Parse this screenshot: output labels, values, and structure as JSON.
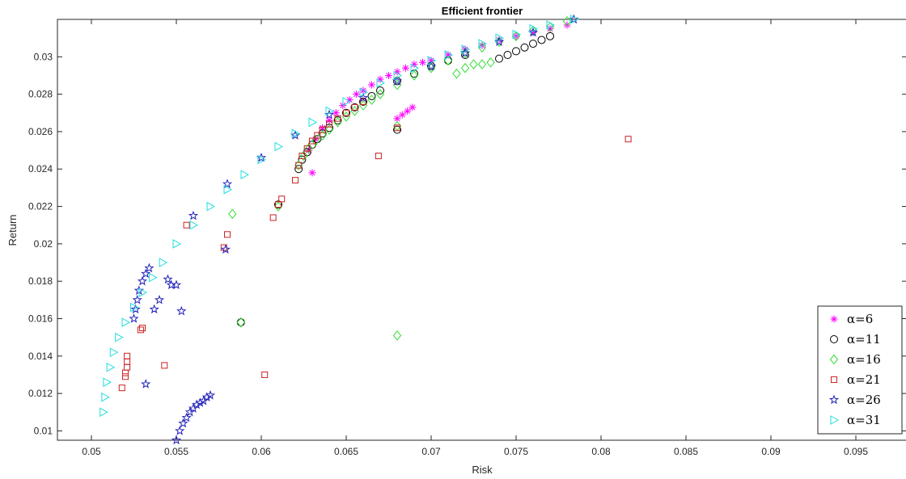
{
  "chart_data": {
    "type": "scatter",
    "title": "Efficient frontier",
    "xlabel": "Risk",
    "ylabel": "Return",
    "xlim": [
      0.048,
      0.098
    ],
    "ylim": [
      0.0095,
      0.032
    ],
    "xticks": [
      0.05,
      0.055,
      0.06,
      0.065,
      0.07,
      0.075,
      0.08,
      0.085,
      0.09,
      0.095
    ],
    "xtick_labels": [
      "0.05",
      "0.055",
      "0.06",
      "0.065",
      "0.07",
      "0.075",
      "0.08",
      "0.085",
      "0.09",
      "0.095"
    ],
    "yticks": [
      0.01,
      0.012,
      0.014,
      0.016,
      0.018,
      0.02,
      0.022,
      0.024,
      0.026,
      0.028,
      0.03
    ],
    "ytick_labels": [
      "0.01",
      "0.012",
      "0.014",
      "0.016",
      "0.018",
      "0.02",
      "0.022",
      "0.024",
      "0.026",
      "0.028",
      "0.03"
    ],
    "grid": false,
    "legend_position": "bottom-right",
    "series": [
      {
        "name": "α=6",
        "marker": "asterisk",
        "color": "#ff00ff",
        "x": [
          0.063,
          0.0628,
          0.0632,
          0.0636,
          0.064,
          0.0644,
          0.0648,
          0.0652,
          0.0656,
          0.066,
          0.0665,
          0.067,
          0.0675,
          0.068,
          0.0685,
          0.069,
          0.0695,
          0.07,
          0.071,
          0.072,
          0.073,
          0.074,
          0.075,
          0.076,
          0.077,
          0.078,
          0.068,
          0.0683,
          0.0686,
          0.0689
        ],
        "y": [
          0.0238,
          0.025,
          0.0256,
          0.0262,
          0.0266,
          0.027,
          0.0274,
          0.0277,
          0.028,
          0.0282,
          0.0285,
          0.0288,
          0.029,
          0.0292,
          0.0294,
          0.0296,
          0.0297,
          0.0298,
          0.0301,
          0.0304,
          0.0306,
          0.0309,
          0.0311,
          0.0313,
          0.0315,
          0.0317,
          0.0267,
          0.0269,
          0.0271,
          0.0273
        ]
      },
      {
        "name": "α=11",
        "marker": "circle",
        "color": "#000000",
        "x": [
          0.0622,
          0.0624,
          0.0627,
          0.063,
          0.0633,
          0.0636,
          0.064,
          0.0645,
          0.065,
          0.0655,
          0.066,
          0.0665,
          0.067,
          0.068,
          0.069,
          0.07,
          0.071,
          0.072,
          0.074,
          0.0745,
          0.075,
          0.0755,
          0.076,
          0.0765,
          0.077,
          0.068,
          0.061,
          0.0588
        ],
        "y": [
          0.024,
          0.0245,
          0.0249,
          0.0253,
          0.0256,
          0.0259,
          0.0262,
          0.0266,
          0.027,
          0.0273,
          0.0276,
          0.0279,
          0.0282,
          0.0287,
          0.0291,
          0.0295,
          0.0298,
          0.0301,
          0.0299,
          0.0301,
          0.0303,
          0.0305,
          0.0307,
          0.0309,
          0.0311,
          0.0261,
          0.0221,
          0.0158
        ]
      },
      {
        "name": "α=16",
        "marker": "diamond",
        "color": "#33dd33",
        "x": [
          0.0622,
          0.0625,
          0.0628,
          0.0632,
          0.0636,
          0.064,
          0.0645,
          0.065,
          0.0655,
          0.066,
          0.0665,
          0.067,
          0.068,
          0.069,
          0.07,
          0.071,
          0.072,
          0.073,
          0.074,
          0.075,
          0.076,
          0.077,
          0.078,
          0.0715,
          0.072,
          0.0725,
          0.073,
          0.0735,
          0.068,
          0.068,
          0.0583,
          0.0588,
          0.061
        ],
        "y": [
          0.0242,
          0.0247,
          0.0251,
          0.0255,
          0.0258,
          0.0261,
          0.0265,
          0.0268,
          0.0271,
          0.0274,
          0.0277,
          0.028,
          0.0285,
          0.029,
          0.0294,
          0.0298,
          0.0302,
          0.0305,
          0.0308,
          0.0311,
          0.0314,
          0.0316,
          0.0319,
          0.0291,
          0.0294,
          0.0296,
          0.0296,
          0.0297,
          0.0263,
          0.0151,
          0.0216,
          0.0158,
          0.022
        ]
      },
      {
        "name": "α=21",
        "marker": "square",
        "color": "#cc2222",
        "x": [
          0.0622,
          0.0624,
          0.0627,
          0.063,
          0.0633,
          0.0636,
          0.064,
          0.0645,
          0.065,
          0.0655,
          0.066,
          0.062,
          0.0612,
          0.0607,
          0.061,
          0.058,
          0.0578,
          0.0556,
          0.053,
          0.0529,
          0.0521,
          0.0521,
          0.0521,
          0.052,
          0.052,
          0.0518,
          0.0543,
          0.0602,
          0.0669,
          0.068,
          0.0816
        ],
        "y": [
          0.0242,
          0.0247,
          0.0251,
          0.0255,
          0.0258,
          0.0261,
          0.0264,
          0.0267,
          0.027,
          0.0273,
          0.0276,
          0.0234,
          0.0224,
          0.0214,
          0.0221,
          0.0205,
          0.0198,
          0.021,
          0.0155,
          0.0154,
          0.014,
          0.0137,
          0.0134,
          0.0131,
          0.0129,
          0.0123,
          0.0135,
          0.013,
          0.0247,
          0.0262,
          0.0256
        ]
      },
      {
        "name": "α=26",
        "marker": "star",
        "color": "#2222bb",
        "x": [
          0.055,
          0.0552,
          0.0554,
          0.0556,
          0.0558,
          0.056,
          0.0562,
          0.0564,
          0.0566,
          0.0568,
          0.057,
          0.0525,
          0.0526,
          0.0527,
          0.0528,
          0.053,
          0.0532,
          0.0534,
          0.0545,
          0.0547,
          0.055,
          0.054,
          0.0537,
          0.0553,
          0.0532,
          0.0579,
          0.056,
          0.058,
          0.06,
          0.062,
          0.064,
          0.066,
          0.068,
          0.07,
          0.072,
          0.074,
          0.076,
          0.0784
        ],
        "y": [
          0.0095,
          0.01,
          0.0104,
          0.0107,
          0.011,
          0.0112,
          0.0114,
          0.0115,
          0.0116,
          0.0118,
          0.0119,
          0.016,
          0.0165,
          0.017,
          0.0175,
          0.018,
          0.0184,
          0.0187,
          0.0181,
          0.0178,
          0.0178,
          0.017,
          0.0165,
          0.0164,
          0.0125,
          0.0197,
          0.0215,
          0.0232,
          0.0246,
          0.0258,
          0.0269,
          0.0278,
          0.0287,
          0.0295,
          0.0302,
          0.0308,
          0.0313,
          0.032
        ]
      },
      {
        "name": "α=31",
        "marker": "triangle-right",
        "color": "#22dddd",
        "x": [
          0.0507,
          0.0508,
          0.0509,
          0.0511,
          0.0513,
          0.0516,
          0.052,
          0.0525,
          0.053,
          0.0536,
          0.0542,
          0.055,
          0.056,
          0.057,
          0.058,
          0.059,
          0.06,
          0.061,
          0.062,
          0.063,
          0.064,
          0.065,
          0.066,
          0.067,
          0.068,
          0.069,
          0.07,
          0.071,
          0.072,
          0.073,
          0.074,
          0.075,
          0.076,
          0.077,
          0.0784
        ],
        "y": [
          0.011,
          0.0118,
          0.0126,
          0.0134,
          0.0142,
          0.015,
          0.0158,
          0.0166,
          0.0174,
          0.0182,
          0.019,
          0.02,
          0.021,
          0.022,
          0.0229,
          0.0237,
          0.0245,
          0.0252,
          0.0259,
          0.0265,
          0.0271,
          0.0276,
          0.0281,
          0.0286,
          0.029,
          0.0294,
          0.0298,
          0.0301,
          0.0304,
          0.0307,
          0.031,
          0.0312,
          0.0315,
          0.0317,
          0.032
        ]
      }
    ]
  }
}
